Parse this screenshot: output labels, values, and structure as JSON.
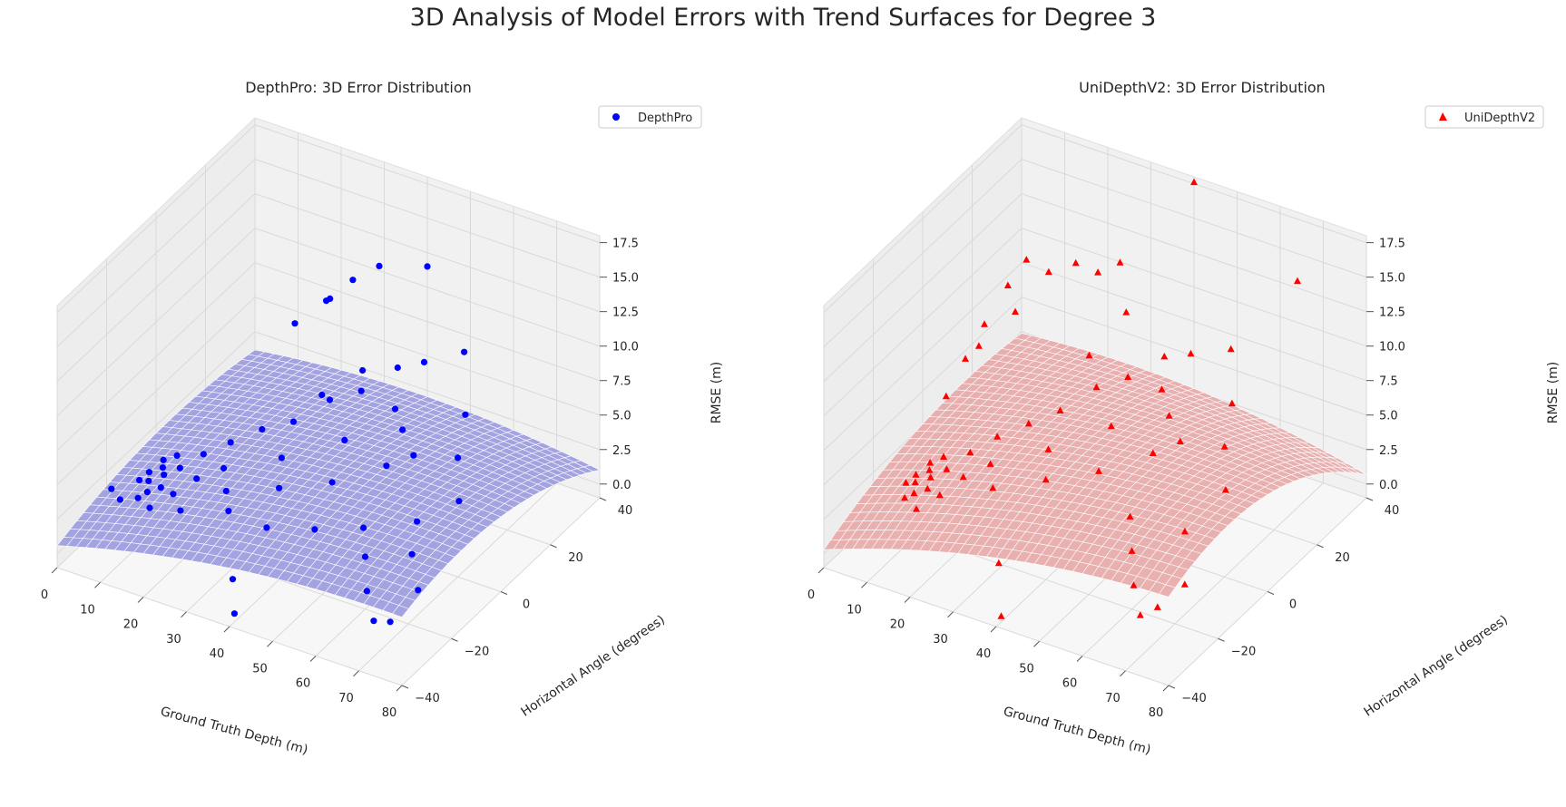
{
  "figure": {
    "title": "3D Analysis of Model Errors with Trend Surfaces for Degree 3"
  },
  "chart_data": [
    {
      "type": "scatter3d",
      "title": "DepthPro: 3D Error Distribution",
      "xlabel": "Ground Truth Depth (m)",
      "ylabel": "Horizontal Angle (degrees)",
      "zlabel": "RMSE (m)",
      "xticks": [
        "0",
        "10",
        "20",
        "30",
        "40",
        "50",
        "60",
        "70",
        "80"
      ],
      "yticks": [
        "−40",
        "−20",
        "0",
        "20",
        "40"
      ],
      "zticks": [
        "0.0",
        "2.5",
        "5.0",
        "7.5",
        "10.0",
        "12.5",
        "15.0",
        "17.5"
      ],
      "xlim": [
        0,
        80
      ],
      "ylim": [
        -40,
        40
      ],
      "zlim": [
        -1,
        18
      ],
      "legend": {
        "label": "DepthPro",
        "placement": "top-right"
      },
      "marker": "circle",
      "point_color": "#0000ff",
      "surface_color": "#9b9be0",
      "grid": true,
      "points": [
        {
          "x": 3,
          "y": -8,
          "z": 0.8
        },
        {
          "x": 4,
          "y": -10,
          "z": 0.6
        },
        {
          "x": 3,
          "y": -12,
          "z": 0.9
        },
        {
          "x": 5,
          "y": -6,
          "z": 1.0
        },
        {
          "x": 6,
          "y": -14,
          "z": 0.7
        },
        {
          "x": 4,
          "y": -4,
          "z": 1.1
        },
        {
          "x": 7,
          "y": -9,
          "z": 1.2
        },
        {
          "x": 5,
          "y": -16,
          "z": 0.5
        },
        {
          "x": 8,
          "y": -12,
          "z": 0.9
        },
        {
          "x": 6,
          "y": -2,
          "z": 1.3
        },
        {
          "x": 10,
          "y": -20,
          "z": 1.0
        },
        {
          "x": 9,
          "y": -6,
          "z": 1.4
        },
        {
          "x": 12,
          "y": -14,
          "z": 1.2
        },
        {
          "x": 11,
          "y": 0,
          "z": 1.6
        },
        {
          "x": 14,
          "y": -8,
          "z": 1.5
        },
        {
          "x": 15,
          "y": 4,
          "z": 2.2
        },
        {
          "x": 18,
          "y": -4,
          "z": 2.0
        },
        {
          "x": 20,
          "y": 8,
          "z": 3.0
        },
        {
          "x": 22,
          "y": -10,
          "z": 1.8
        },
        {
          "x": 25,
          "y": 12,
          "z": 3.4
        },
        {
          "x": 28,
          "y": 2,
          "z": 2.8
        },
        {
          "x": 30,
          "y": 18,
          "z": 4.5
        },
        {
          "x": 32,
          "y": -6,
          "z": 2.4
        },
        {
          "x": 35,
          "y": 22,
          "z": 5.0
        },
        {
          "x": 38,
          "y": 10,
          "z": 3.8
        },
        {
          "x": 40,
          "y": 28,
          "z": 6.2
        },
        {
          "x": 42,
          "y": -2,
          "z": 3.2
        },
        {
          "x": 45,
          "y": 30,
          "z": 6.8
        },
        {
          "x": 48,
          "y": 16,
          "z": 4.6
        },
        {
          "x": 50,
          "y": 6,
          "z": 3.9
        },
        {
          "x": 52,
          "y": 34,
          "z": 7.6
        },
        {
          "x": 55,
          "y": -12,
          "z": 3.0
        },
        {
          "x": 58,
          "y": 24,
          "z": 5.4
        },
        {
          "x": 60,
          "y": -20,
          "z": 2.8
        },
        {
          "x": 62,
          "y": 14,
          "z": 4.4
        },
        {
          "x": 65,
          "y": -28,
          "z": 2.2
        },
        {
          "x": 68,
          "y": 4,
          "z": 3.6
        },
        {
          "x": 70,
          "y": -34,
          "z": 1.6
        },
        {
          "x": 25,
          "y": 36,
          "z": 9.6
        },
        {
          "x": 30,
          "y": 38,
          "z": 10.8
        },
        {
          "x": 40,
          "y": 40,
          "z": 11.5
        },
        {
          "x": 22,
          "y": 32,
          "z": 8.6
        },
        {
          "x": 20,
          "y": 34,
          "z": 7.9
        },
        {
          "x": 15,
          "y": 30,
          "z": 6.4
        },
        {
          "x": 8,
          "y": -32,
          "z": 4.2
        },
        {
          "x": 35,
          "y": -30,
          "z": 0.2
        },
        {
          "x": 40,
          "y": -38,
          "z": -0.4
        },
        {
          "x": 75,
          "y": -36,
          "z": 2.4
        },
        {
          "x": 78,
          "y": -30,
          "z": 4.0
        },
        {
          "x": 72,
          "y": -22,
          "z": 4.6
        },
        {
          "x": 2,
          "y": -18,
          "z": 0.4
        },
        {
          "x": 16,
          "y": -18,
          "z": 1.1
        },
        {
          "x": 26,
          "y": -16,
          "z": 1.8
        },
        {
          "x": 36,
          "y": -18,
          "z": 2.0
        },
        {
          "x": 46,
          "y": -16,
          "z": 2.6
        },
        {
          "x": 33,
          "y": 26,
          "z": 5.6
        },
        {
          "x": 27,
          "y": 20,
          "z": 4.2
        },
        {
          "x": 44,
          "y": 20,
          "z": 5.0
        },
        {
          "x": 54,
          "y": 10,
          "z": 4.4
        },
        {
          "x": 64,
          "y": -6,
          "z": 3.4
        }
      ]
    },
    {
      "type": "scatter3d",
      "title": "UniDepthV2: 3D Error Distribution",
      "xlabel": "Ground Truth Depth (m)",
      "ylabel": "Horizontal Angle (degrees)",
      "zlabel": "RMSE (m)",
      "xticks": [
        "0",
        "10",
        "20",
        "30",
        "40",
        "50",
        "60",
        "70",
        "80"
      ],
      "yticks": [
        "−40",
        "−20",
        "0",
        "20",
        "40"
      ],
      "zticks": [
        "0.0",
        "2.5",
        "5.0",
        "7.5",
        "10.0",
        "12.5",
        "15.0",
        "17.5"
      ],
      "xlim": [
        0,
        80
      ],
      "ylim": [
        -40,
        40
      ],
      "zlim": [
        -1,
        18
      ],
      "legend": {
        "label": "UniDepthV2",
        "placement": "top-right"
      },
      "marker": "triangle",
      "point_color": "#ff0000",
      "surface_color": "#e8a9a9",
      "grid": true,
      "points": [
        {
          "x": 3,
          "y": -8,
          "z": 0.6
        },
        {
          "x": 4,
          "y": -10,
          "z": 0.5
        },
        {
          "x": 3,
          "y": -12,
          "z": 0.7
        },
        {
          "x": 5,
          "y": -6,
          "z": 0.8
        },
        {
          "x": 6,
          "y": -14,
          "z": 0.6
        },
        {
          "x": 4,
          "y": -4,
          "z": 0.9
        },
        {
          "x": 7,
          "y": -9,
          "z": 1.0
        },
        {
          "x": 5,
          "y": -16,
          "z": 0.5
        },
        {
          "x": 8,
          "y": -12,
          "z": 0.8
        },
        {
          "x": 6,
          "y": -2,
          "z": 1.2
        },
        {
          "x": 10,
          "y": -20,
          "z": 0.9
        },
        {
          "x": 9,
          "y": -6,
          "z": 1.3
        },
        {
          "x": 12,
          "y": -14,
          "z": 1.1
        },
        {
          "x": 11,
          "y": 0,
          "z": 1.7
        },
        {
          "x": 14,
          "y": -8,
          "z": 1.6
        },
        {
          "x": 15,
          "y": 4,
          "z": 2.6
        },
        {
          "x": 18,
          "y": -4,
          "z": 2.3
        },
        {
          "x": 20,
          "y": 8,
          "z": 3.4
        },
        {
          "x": 22,
          "y": -10,
          "z": 2.0
        },
        {
          "x": 25,
          "y": 12,
          "z": 4.2
        },
        {
          "x": 28,
          "y": 2,
          "z": 3.4
        },
        {
          "x": 30,
          "y": 18,
          "z": 5.4
        },
        {
          "x": 32,
          "y": -6,
          "z": 3.0
        },
        {
          "x": 35,
          "y": 22,
          "z": 6.0
        },
        {
          "x": 38,
          "y": 10,
          "z": 4.8
        },
        {
          "x": 40,
          "y": 28,
          "z": 7.0
        },
        {
          "x": 42,
          "y": -2,
          "z": 4.0
        },
        {
          "x": 45,
          "y": 30,
          "z": 7.4
        },
        {
          "x": 48,
          "y": 16,
          "z": 5.6
        },
        {
          "x": 50,
          "y": 6,
          "z": 4.8
        },
        {
          "x": 52,
          "y": 34,
          "z": 7.8
        },
        {
          "x": 55,
          "y": -12,
          "z": 3.8
        },
        {
          "x": 58,
          "y": 24,
          "z": 6.2
        },
        {
          "x": 60,
          "y": -20,
          "z": 3.2
        },
        {
          "x": 62,
          "y": 14,
          "z": 5.2
        },
        {
          "x": 65,
          "y": -28,
          "z": 2.6
        },
        {
          "x": 68,
          "y": 4,
          "z": 4.4
        },
        {
          "x": 70,
          "y": -34,
          "z": 2.0
        },
        {
          "x": 8,
          "y": 28,
          "z": 10.6
        },
        {
          "x": 12,
          "y": 30,
          "z": 9.8
        },
        {
          "x": 6,
          "y": 24,
          "z": 9.2
        },
        {
          "x": 16,
          "y": 34,
          "z": 10.2
        },
        {
          "x": 20,
          "y": 36,
          "z": 9.6
        },
        {
          "x": 24,
          "y": 38,
          "z": 10.4
        },
        {
          "x": 4,
          "y": 18,
          "z": 7.2
        },
        {
          "x": 10,
          "y": 20,
          "z": 8.4
        },
        {
          "x": 3,
          "y": 12,
          "z": 5.6
        },
        {
          "x": 2,
          "y": 6,
          "z": 3.8
        },
        {
          "x": 5,
          "y": 14,
          "z": 6.4
        },
        {
          "x": 40,
          "y": 40,
          "z": 17.6
        },
        {
          "x": 64,
          "y": 40,
          "z": 13.0
        },
        {
          "x": 36,
          "y": -32,
          "z": 1.8
        },
        {
          "x": 40,
          "y": -38,
          "z": -0.6
        },
        {
          "x": 74,
          "y": -34,
          "z": 3.0
        },
        {
          "x": 78,
          "y": -30,
          "z": 4.4
        },
        {
          "x": 70,
          "y": -16,
          "z": 5.0
        },
        {
          "x": 30,
          "y": 30,
          "z": 8.8
        },
        {
          "x": 26,
          "y": 22,
          "z": 6.6
        },
        {
          "x": 44,
          "y": 20,
          "z": 6.4
        },
        {
          "x": 54,
          "y": 10,
          "z": 5.4
        }
      ]
    }
  ]
}
